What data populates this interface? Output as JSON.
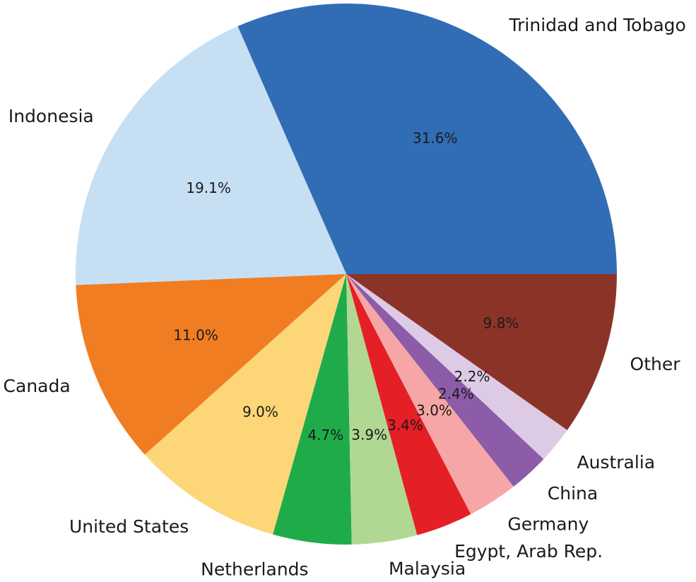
{
  "chart_data": {
    "type": "pie",
    "title": "",
    "slices": [
      {
        "label": "Trinidad and Tobago",
        "value": 31.6,
        "pct_label": "31.6%",
        "color": "#316db5"
      },
      {
        "label": "Indonesia",
        "value": 19.1,
        "pct_label": "19.1%",
        "color": "#c7dff3"
      },
      {
        "label": "Canada",
        "value": 11.0,
        "pct_label": "11.0%",
        "color": "#f07d22"
      },
      {
        "label": "United States",
        "value": 9.0,
        "pct_label": "9.0%",
        "color": "#fdd677"
      },
      {
        "label": "Netherlands",
        "value": 4.7,
        "pct_label": "4.7%",
        "color": "#20ab4a"
      },
      {
        "label": "Malaysia",
        "value": 3.9,
        "pct_label": "3.9%",
        "color": "#b0d893"
      },
      {
        "label": "Egypt, Arab Rep.",
        "value": 3.4,
        "pct_label": "3.4%",
        "color": "#e51f26"
      },
      {
        "label": "Germany",
        "value": 3.0,
        "pct_label": "3.0%",
        "color": "#f6a6a6"
      },
      {
        "label": "China",
        "value": 2.4,
        "pct_label": "2.4%",
        "color": "#8c5ca8"
      },
      {
        "label": "Australia",
        "value": 2.2,
        "pct_label": "2.2%",
        "color": "#ddcbe6"
      },
      {
        "label": "Other",
        "value": 9.8,
        "pct_label": "9.8%",
        "color": "#8c3327"
      }
    ]
  }
}
